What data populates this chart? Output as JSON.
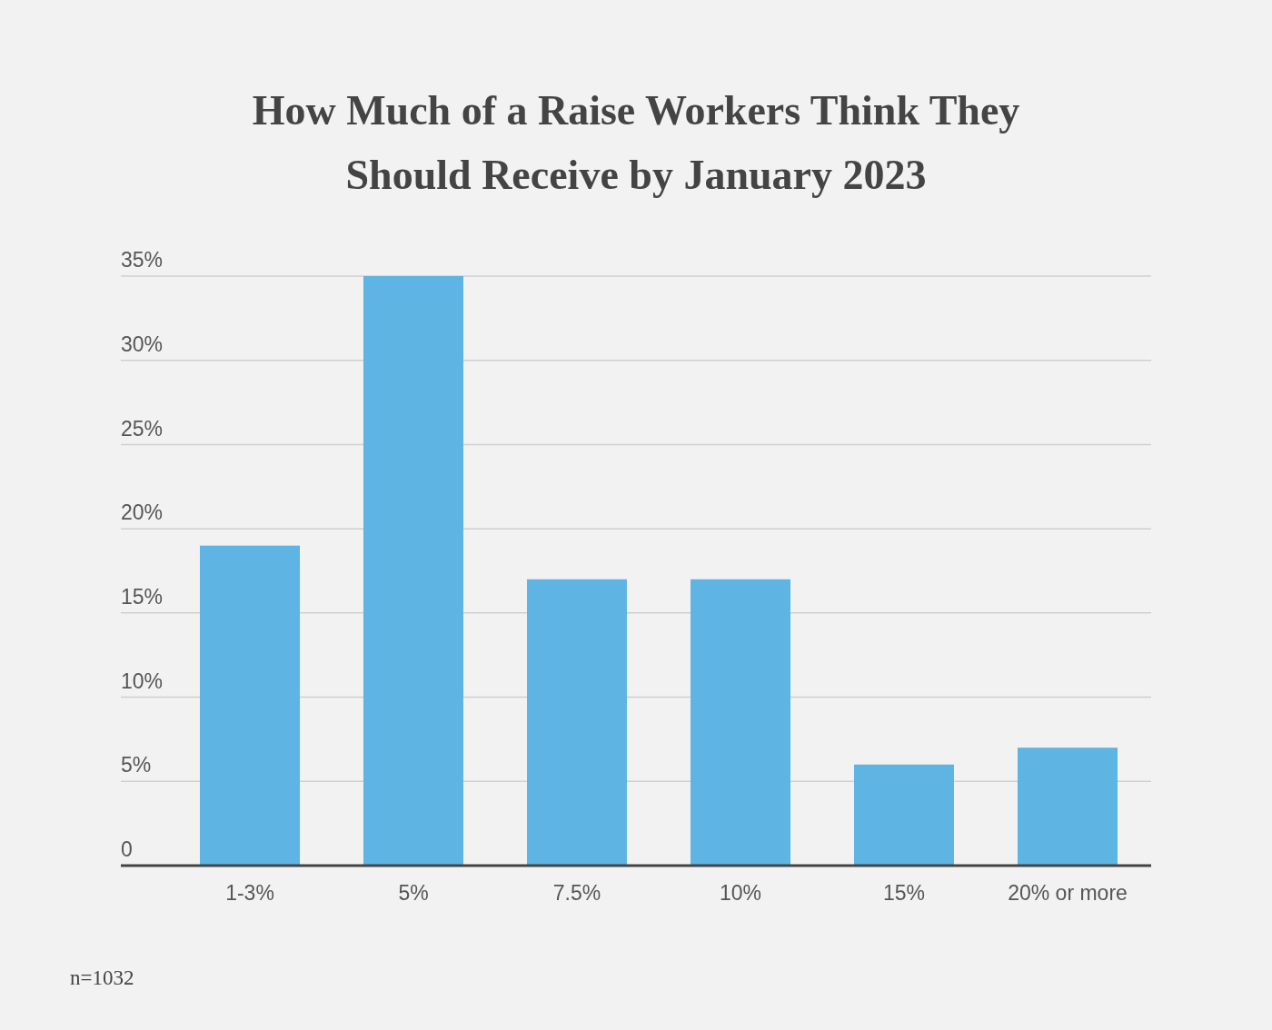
{
  "chart_data": {
    "type": "bar",
    "title": "How Much of a Raise Workers Think They Should Receive by January 2023",
    "categories": [
      "1-3%",
      "5%",
      "7.5%",
      "10%",
      "15%",
      "20% or more"
    ],
    "values": [
      19,
      35,
      17,
      17,
      6,
      7
    ],
    "color": "#5eb4e3",
    "ylim": [
      0,
      35
    ],
    "yticks": [
      {
        "value": 0,
        "label": "0"
      },
      {
        "value": 5,
        "label": "5%"
      },
      {
        "value": 10,
        "label": "10%"
      },
      {
        "value": 15,
        "label": "15%"
      },
      {
        "value": 20,
        "label": "20%"
      },
      {
        "value": 25,
        "label": "25%"
      },
      {
        "value": 30,
        "label": "30%"
      },
      {
        "value": 35,
        "label": "35%"
      }
    ],
    "grid": "y",
    "annotations": [
      "n=1032"
    ]
  }
}
